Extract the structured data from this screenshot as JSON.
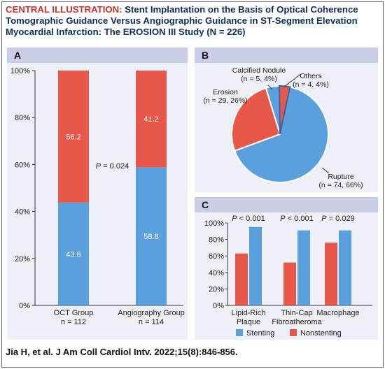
{
  "title": {
    "lead": "CENTRAL ILLUSTRATION:",
    "text": "Stent Implantation on the Basis of Optical Coherence Tomographic Guidance Versus Angiographic Guidance in ST-Segment Elevation Myocardial Infarction: The EROSION III Study (N = 226)"
  },
  "citation": "Jia H, et al. J Am Coll Cardiol Intv. 2022;15(8):846-856.",
  "colors": {
    "stenting": "#5aa0dc",
    "nonstenting": "#e8584a",
    "panel_bg": "#eef0f8",
    "panel_header": "#c9cde6",
    "title_blue": "#0f2e57",
    "title_red": "#d0322a"
  },
  "chart_data": [
    {
      "panel": "A",
      "type": "bar",
      "stacked": true,
      "categories": [
        "OCT Group",
        "Angiography Group"
      ],
      "category_sublabels": [
        "n = 112",
        "n = 114"
      ],
      "series": [
        {
          "name": "Stenting",
          "values": [
            43.8,
            58.8
          ]
        },
        {
          "name": "Nonstenting",
          "values": [
            56.2,
            41.2
          ]
        }
      ],
      "value_labels": [
        [
          "43.8",
          "58.8"
        ],
        [
          "56.2",
          "41.2"
        ]
      ],
      "ylim": [
        0,
        100
      ],
      "yticks": [
        "0%",
        "20%",
        "40%",
        "60%",
        "80%",
        "100%"
      ],
      "annotation": {
        "p_label": "P",
        "p_value": "= 0.024"
      }
    },
    {
      "panel": "B",
      "type": "pie",
      "slices": [
        {
          "name": "Rupture",
          "value": 74,
          "label_line1": "Rupture",
          "label_line2": "(n = 74, 66%)"
        },
        {
          "name": "Erosion",
          "value": 29,
          "label_line1": "Erosion",
          "label_line2": "(n = 29, 26%)"
        },
        {
          "name": "Calcified Nodule",
          "value": 5,
          "label_line1": "Calcified Nodule",
          "label_line2": "(n = 5, 4%)"
        },
        {
          "name": "Others",
          "value": 4,
          "label_line1": "Others",
          "label_line2": "(n = 4, 4%)"
        }
      ]
    },
    {
      "panel": "C",
      "type": "bar",
      "categories": [
        "Lipid-Rich Plaque",
        "Thin-Cap Fibroatheroma",
        "Macrophage"
      ],
      "category_labels": [
        [
          "Lipid-Rich",
          "Plaque"
        ],
        [
          "Thin-Cap",
          "Fibroatheroma"
        ],
        [
          "Macrophage",
          ""
        ]
      ],
      "series": [
        {
          "name": "Nonstenting",
          "values": [
            63,
            52,
            76
          ]
        },
        {
          "name": "Stenting",
          "values": [
            95,
            91,
            91
          ]
        }
      ],
      "ylim": [
        0,
        100
      ],
      "yticks": [
        "0%",
        "20%",
        "40%",
        "60%",
        "80%",
        "100%"
      ],
      "annotations": [
        {
          "p_label": "P",
          "p_value": "< 0.001"
        },
        {
          "p_label": "P",
          "p_value": "< 0.001"
        },
        {
          "p_label": "P",
          "p_value": "= 0.029"
        }
      ]
    }
  ],
  "legend": {
    "items": [
      {
        "label": "Stenting",
        "color": "#5aa0dc"
      },
      {
        "label": "Nonstenting",
        "color": "#e8584a"
      }
    ]
  }
}
